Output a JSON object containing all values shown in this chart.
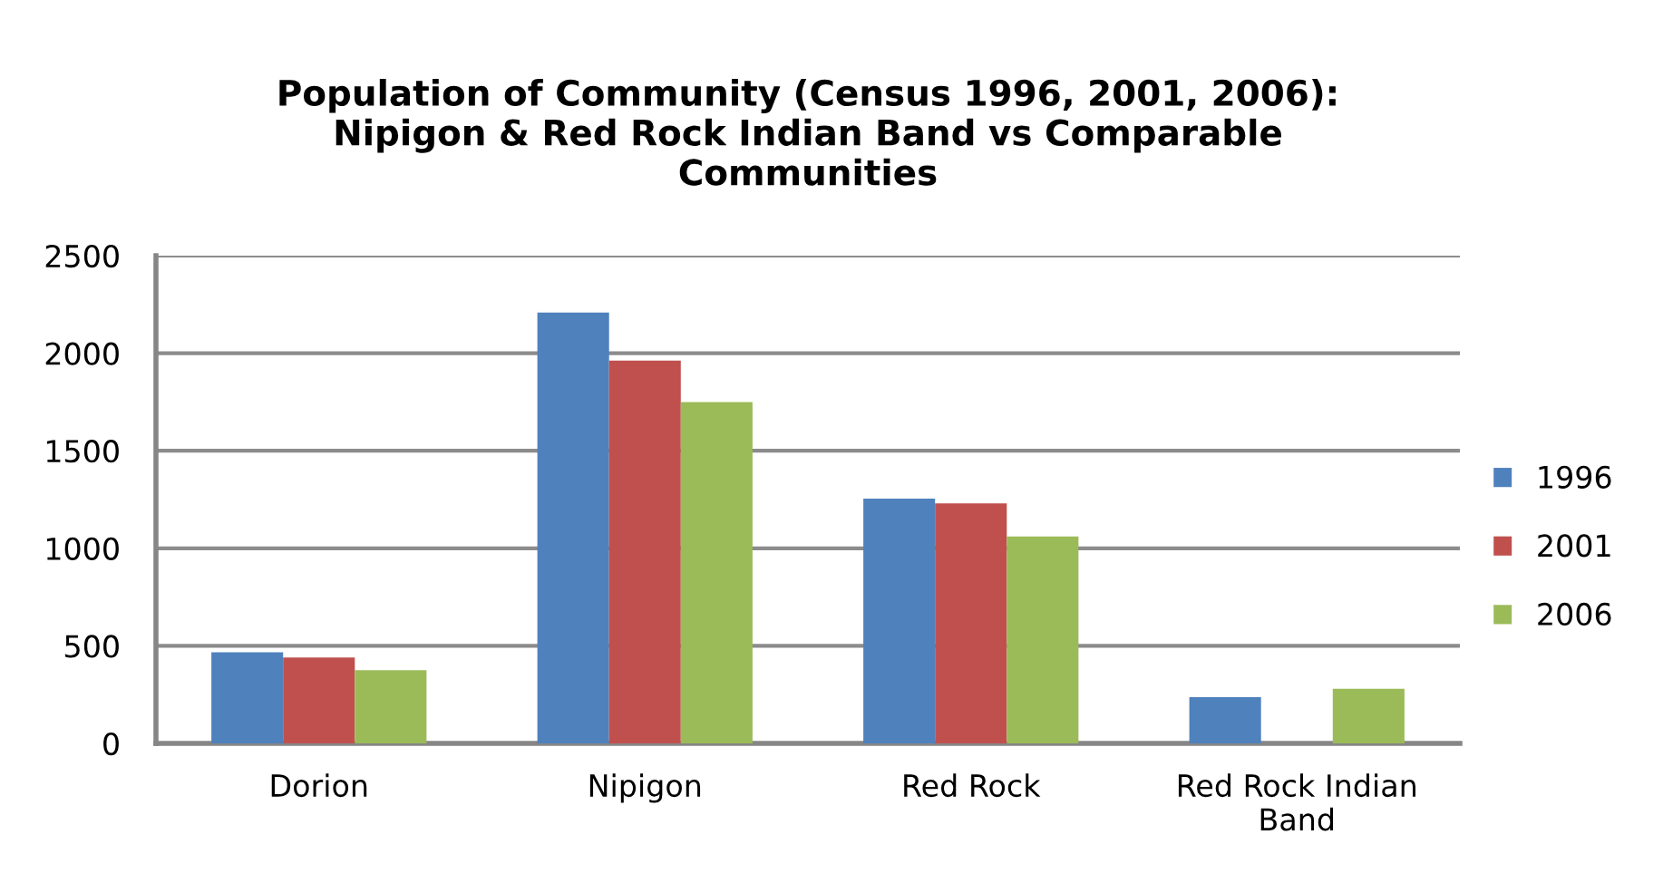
{
  "chart_data": {
    "type": "bar",
    "title": "Population of Community (Census 1996, 2001, 2006):\nNipigon & Red Rock Indian Band vs Comparable\nCommunities",
    "categories": [
      "Dorion",
      "Nipigon",
      "Red Rock",
      "Red Rock Indian\nBand"
    ],
    "series": [
      {
        "name": "1996",
        "color": "#4f81bd",
        "values": [
          467,
          2208,
          1255,
          237
        ]
      },
      {
        "name": "2001",
        "color": "#c0504d",
        "values": [
          440,
          1962,
          1230,
          null
        ]
      },
      {
        "name": "2006",
        "color": "#9bbb59",
        "values": [
          375,
          1750,
          1061,
          280
        ]
      }
    ],
    "ylim": [
      0,
      2500
    ],
    "yticks": [
      0,
      500,
      1000,
      1500,
      2000,
      2500
    ],
    "grid": "y",
    "legend": "right"
  }
}
